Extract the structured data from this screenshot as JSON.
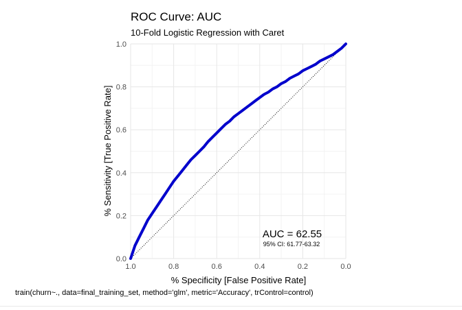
{
  "chart_data": {
    "type": "line",
    "title": "ROC Curve: AUC",
    "subtitle": "10-Fold Logistic Regression with Caret",
    "xlabel": "% Specificity [False Positive Rate]",
    "ylabel": "% Sensitivity [True Positive Rate]",
    "xlim": [
      1.0,
      0.0
    ],
    "ylim": [
      0.0,
      1.0
    ],
    "x_reversed": true,
    "x_ticks": [
      "1.0",
      "0.8",
      "0.6",
      "0.4",
      "0.2",
      "0.0"
    ],
    "y_ticks": [
      "0.0",
      "0.2",
      "0.4",
      "0.6",
      "0.8",
      "1.0"
    ],
    "grid": true,
    "series": [
      {
        "x": [
          1.0,
          0.98,
          0.96,
          0.94,
          0.92,
          0.9,
          0.88,
          0.86,
          0.84,
          0.82,
          0.8,
          0.78,
          0.76,
          0.74,
          0.72,
          0.7,
          0.68,
          0.66,
          0.64,
          0.62,
          0.6,
          0.58,
          0.56,
          0.54,
          0.52,
          0.5,
          0.48,
          0.46,
          0.44,
          0.42,
          0.4,
          0.38,
          0.36,
          0.34,
          0.32,
          0.3,
          0.28,
          0.26,
          0.24,
          0.22,
          0.2,
          0.18,
          0.16,
          0.14,
          0.12,
          0.1,
          0.08,
          0.06,
          0.04,
          0.02,
          0.0
        ],
        "y": [
          0.0,
          0.06,
          0.1,
          0.14,
          0.18,
          0.21,
          0.24,
          0.27,
          0.3,
          0.33,
          0.36,
          0.385,
          0.41,
          0.435,
          0.46,
          0.48,
          0.5,
          0.52,
          0.545,
          0.565,
          0.585,
          0.605,
          0.625,
          0.64,
          0.66,
          0.675,
          0.69,
          0.705,
          0.72,
          0.735,
          0.75,
          0.765,
          0.775,
          0.79,
          0.8,
          0.815,
          0.825,
          0.84,
          0.85,
          0.86,
          0.875,
          0.885,
          0.895,
          0.905,
          0.92,
          0.93,
          0.94,
          0.95,
          0.965,
          0.98,
          1.0
        ],
        "color": "#0000cc"
      }
    ],
    "reference_line": {
      "style": "dotted",
      "color": "#000000"
    },
    "annotations": {
      "auc_text": "AUC = 62.55",
      "ci_text": "95% CI: 61.77-63.32"
    }
  },
  "caption": "train(churn~., data=final_training_set, method='glm', metric='Accuracy', trControl=control)"
}
